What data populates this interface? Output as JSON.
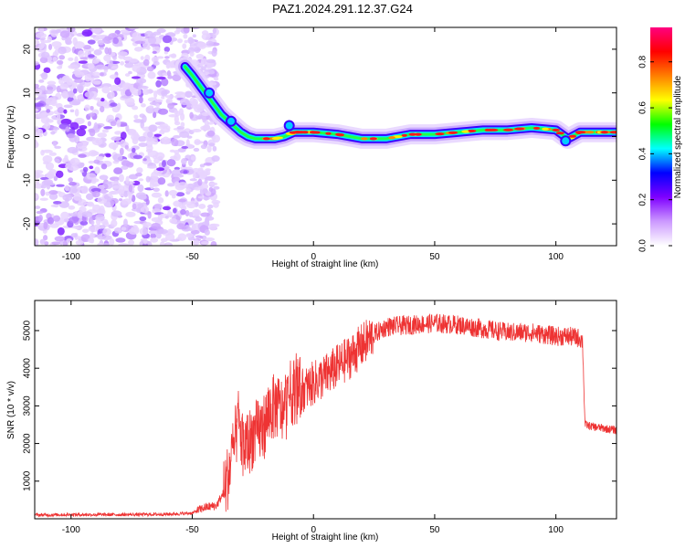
{
  "title": "PAZ1.2024.291.12.37.G24",
  "chart_data": [
    {
      "type": "heatmap",
      "xlabel": "Height of straight line (km)",
      "ylabel": "Frequency (Hz)",
      "xlim": [
        -115,
        125
      ],
      "ylim": [
        -25,
        25
      ],
      "xticks": [
        -100,
        -50,
        0,
        50,
        100
      ],
      "yticks": [
        -20,
        -10,
        0,
        10,
        20
      ],
      "colorbar": {
        "label": "Normalized spectral amplitude",
        "range": [
          0.0,
          0.95
        ],
        "ticks": [
          "0.0",
          "0.2",
          "0.4",
          "0.6",
          "0.8"
        ],
        "colormap": [
          "#ffffff",
          "#cc99ff",
          "#7f00ff",
          "#0000ff",
          "#00ffff",
          "#00ff00",
          "#ffff00",
          "#ff7f00",
          "#ff0000",
          "#ff0080"
        ]
      },
      "ridge": {
        "x": [
          -53,
          -50,
          -46,
          -42,
          -38,
          -34,
          -30,
          -27,
          -24,
          -20,
          -16,
          -12,
          -8,
          -4,
          0,
          10,
          20,
          30,
          40,
          50,
          60,
          70,
          80,
          90,
          100,
          105,
          110,
          115,
          120,
          125
        ],
        "y": [
          16,
          14,
          11,
          8,
          5,
          3,
          1,
          0,
          -0.5,
          -0.5,
          -0.5,
          0,
          1,
          1,
          1,
          0.5,
          -0.5,
          -0.5,
          0.5,
          0.5,
          1,
          1.5,
          1.5,
          2,
          1.5,
          -0.5,
          1,
          1,
          1,
          1
        ]
      },
      "noise_region_x": [
        -115,
        -45
      ]
    },
    {
      "type": "line",
      "xlabel": "Height of straight line (km)",
      "ylabel": "SNR (10 * v/v)",
      "xlim": [
        -115,
        125
      ],
      "ylim": [
        0,
        5800
      ],
      "xticks": [
        -100,
        -50,
        0,
        50,
        100
      ],
      "yticks": [
        1000,
        2000,
        3000,
        4000,
        5000
      ],
      "series": [
        {
          "color": "#ee3333",
          "x": [
            -115,
            -100,
            -80,
            -60,
            -50,
            -45,
            -40,
            -37,
            -35,
            -33,
            -31,
            -30,
            -29,
            -27,
            -25,
            -23,
            -20,
            -18,
            -15,
            -12,
            -10,
            -8,
            -5,
            -2,
            0,
            5,
            10,
            15,
            20,
            25,
            30,
            40,
            50,
            60,
            70,
            80,
            90,
            100,
            105,
            110,
            111,
            112,
            115,
            120,
            125
          ],
          "y": [
            100,
            110,
            110,
            120,
            150,
            300,
            350,
            700,
            1200,
            1800,
            2600,
            2200,
            1900,
            2000,
            2200,
            2300,
            2500,
            2900,
            3000,
            2800,
            3300,
            3400,
            3400,
            3500,
            3600,
            3800,
            4050,
            4300,
            4600,
            4900,
            5100,
            5150,
            5200,
            5150,
            5050,
            4950,
            4950,
            4850,
            4850,
            4800,
            4700,
            2500,
            2450,
            2400,
            2350
          ]
        }
      ]
    }
  ]
}
